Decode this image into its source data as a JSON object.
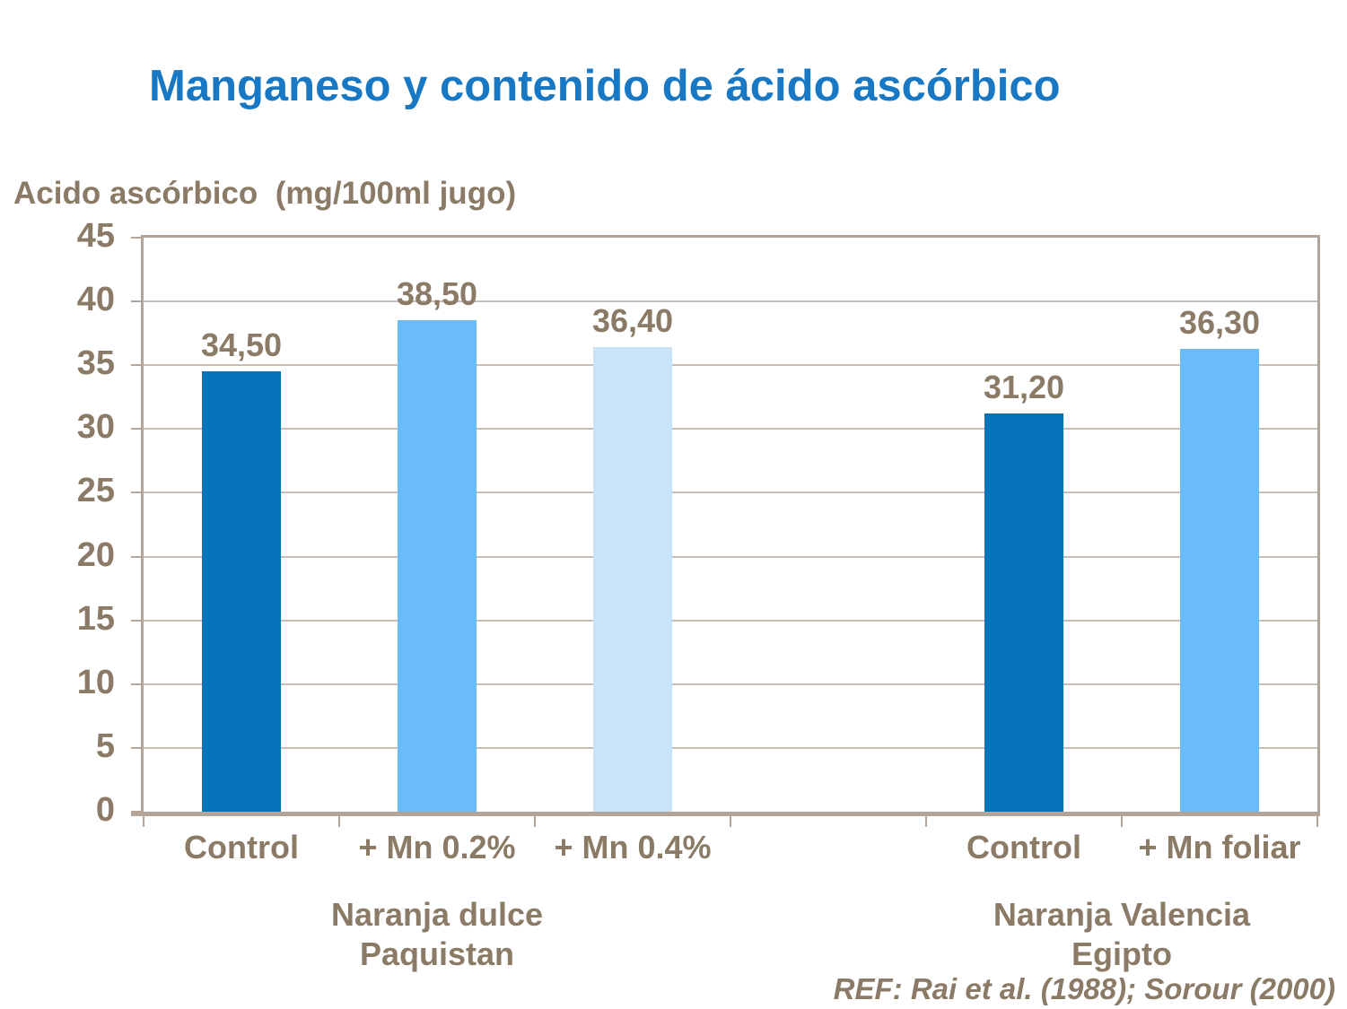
{
  "colors": {
    "title_blue": "#1878C4",
    "text_brown": "#8A7A66",
    "axis_taupe": "#B2A498",
    "gridline": "#C6BEB4",
    "bar_dark_blue": "#0772BA",
    "bar_medium_blue": "#69BCF8",
    "bar_light_blue": "#C9E4F8",
    "background": "#FFFFFF"
  },
  "chart_data": {
    "type": "bar",
    "title": "Manganeso y contenido de ácido ascórbico",
    "ylabel": "Acido ascórbico  (mg/100ml jugo)",
    "ylim": [
      0,
      45
    ],
    "ytick_step": 5,
    "yticks": [
      45,
      40,
      35,
      30,
      25,
      20,
      15,
      10,
      5,
      0
    ],
    "grid": true,
    "legend": "none",
    "bars": [
      {
        "category": "Control",
        "value": 34.5,
        "display": "34,50",
        "group": "Naranja dulce Paquistan",
        "color_key": "bar_dark_blue",
        "slot": 0
      },
      {
        "category": "+ Mn 0.2%",
        "value": 38.5,
        "display": "38,50",
        "group": "Naranja dulce Paquistan",
        "color_key": "bar_medium_blue",
        "slot": 1
      },
      {
        "category": "+ Mn 0.4%",
        "value": 36.4,
        "display": "36,40",
        "group": "Naranja dulce Paquistan",
        "color_key": "bar_light_blue",
        "slot": 2
      },
      {
        "category": "Control",
        "value": 31.2,
        "display": "31,20",
        "group": "Naranja Valencia Egipto",
        "color_key": "bar_dark_blue",
        "slot": 4
      },
      {
        "category": "+ Mn foliar",
        "value": 36.3,
        "display": "36,30",
        "group": "Naranja Valencia Egipto",
        "color_key": "bar_medium_blue",
        "slot": 5
      }
    ],
    "groups": [
      {
        "line1": "Naranja dulce",
        "line2": "Paquistan",
        "center_slot": 1
      },
      {
        "line1": "Naranja Valencia",
        "line2": "Egipto",
        "center_slot": 4.5
      }
    ],
    "reference": "REF: Rai et al. (1988); Sorour (2000)"
  }
}
